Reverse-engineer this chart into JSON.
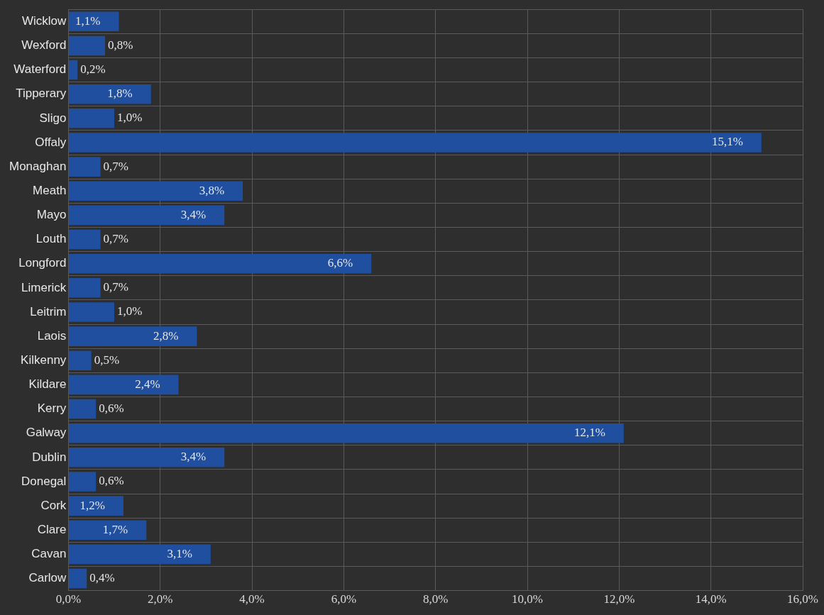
{
  "chart_data": {
    "type": "bar",
    "orientation": "horizontal",
    "categories": [
      "Wicklow",
      "Wexford",
      "Waterford",
      "Tipperary",
      "Sligo",
      "Offaly",
      "Monaghan",
      "Meath",
      "Mayo",
      "Louth",
      "Longford",
      "Limerick",
      "Leitrim",
      "Laois",
      "Kilkenny",
      "Kildare",
      "Kerry",
      "Galway",
      "Dublin",
      "Donegal",
      "Cork",
      "Clare",
      "Cavan",
      "Carlow"
    ],
    "values": [
      1.1,
      0.8,
      0.2,
      1.8,
      1.0,
      15.1,
      0.7,
      3.8,
      3.4,
      0.7,
      6.6,
      0.7,
      1.0,
      2.8,
      0.5,
      2.4,
      0.6,
      12.1,
      3.4,
      0.6,
      1.2,
      1.7,
      3.1,
      0.4
    ],
    "value_labels": [
      "1,1%",
      "0,8%",
      "0,2%",
      "1,8%",
      "1,0%",
      "15,1%",
      "0,7%",
      "3,8%",
      "3,4%",
      "0,7%",
      "6,6%",
      "0,7%",
      "1,0%",
      "2,8%",
      "0,5%",
      "2,4%",
      "0,6%",
      "12,1%",
      "3,4%",
      "0,6%",
      "1,2%",
      "1,7%",
      "3,1%",
      "0,4%"
    ],
    "color": "#1f4f9e",
    "xlim": [
      0,
      16
    ],
    "xticks": [
      {
        "value": 0,
        "label": "0,0%"
      },
      {
        "value": 2,
        "label": "2,0%"
      },
      {
        "value": 4,
        "label": "4,0%"
      },
      {
        "value": 6,
        "label": "6,0%"
      },
      {
        "value": 8,
        "label": "8,0%"
      },
      {
        "value": 10,
        "label": "10,0%"
      },
      {
        "value": 12,
        "label": "12,0%"
      },
      {
        "value": 14,
        "label": "14,0%"
      },
      {
        "value": 16,
        "label": "16,0%"
      }
    ],
    "grid": true
  }
}
